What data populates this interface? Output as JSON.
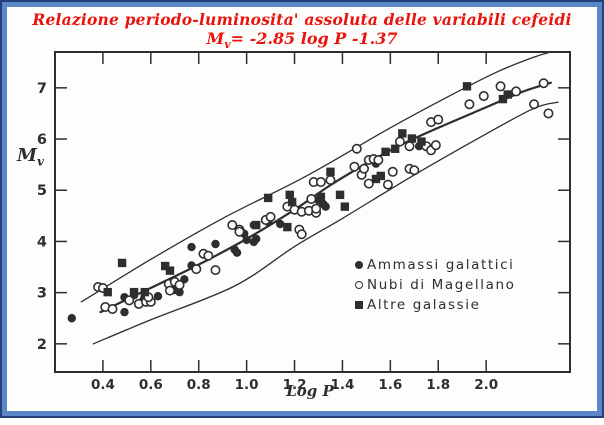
{
  "window": {
    "background": "#fdfdfc",
    "border_outer_color": "#24407a",
    "border_inner_color": "#5b87c9",
    "ink_color": "#2e2e2e",
    "title_color": "#e8150e"
  },
  "title": {
    "line1": "Relazione periodo-luminosita' assoluta delle variabili cefeidi",
    "formula_m": "M",
    "formula_sub": "v",
    "formula_rest": "= -2.85 log P  -1.37"
  },
  "chart_data": {
    "type": "scatter",
    "title": "Relazione periodo-luminosita' assoluta delle variabili cefeidi",
    "subtitle": "Mv = -2.85 log P - 1.37",
    "xlabel": "Log P",
    "ylabel": "M",
    "ylabel_sub": "v",
    "xlim": [
      0.2,
      2.35
    ],
    "ylim": [
      1.45,
      7.7
    ],
    "x_ticks": [
      0.4,
      0.6,
      0.8,
      1.0,
      1.2,
      1.4,
      1.6,
      1.8,
      2.0
    ],
    "x_tick_labels": [
      "0.4",
      "0.6",
      "0.8",
      "1.0",
      "1.2",
      "1.4",
      "1.6",
      "1.8",
      "2.0"
    ],
    "y_ticks": [
      2,
      3,
      4,
      5,
      6,
      7
    ],
    "y_tick_labels": [
      "2",
      "3",
      "4",
      "5",
      "6",
      "7"
    ],
    "grid": false,
    "legend_position": "inside-lower-right",
    "series": [
      {
        "name": "Ammassi galattici",
        "marker": "filled-circle",
        "points": [
          [
            0.27,
            2.5
          ],
          [
            0.49,
            2.62
          ],
          [
            0.49,
            2.91
          ],
          [
            0.53,
            2.95
          ],
          [
            0.57,
            2.87
          ],
          [
            0.63,
            2.93
          ],
          [
            0.7,
            3.05
          ],
          [
            0.72,
            3.01
          ],
          [
            0.74,
            3.26
          ],
          [
            0.77,
            3.53
          ],
          [
            0.77,
            3.89
          ],
          [
            0.87,
            3.95
          ],
          [
            0.95,
            3.84
          ],
          [
            0.96,
            3.78
          ],
          [
            0.99,
            4.15
          ],
          [
            1.0,
            4.03
          ],
          [
            1.03,
            3.99
          ],
          [
            1.04,
            4.05
          ],
          [
            1.03,
            4.32
          ],
          [
            1.09,
            4.38
          ],
          [
            1.14,
            4.34
          ],
          [
            1.3,
            4.81
          ],
          [
            1.32,
            4.73
          ],
          [
            1.33,
            4.68
          ],
          [
            1.54,
            5.52
          ],
          [
            1.72,
            5.86
          ]
        ]
      },
      {
        "name": "Nubi di Magellano",
        "marker": "open-circle",
        "points": [
          [
            0.38,
            3.11
          ],
          [
            0.4,
            3.09
          ],
          [
            0.41,
            2.72
          ],
          [
            0.44,
            2.68
          ],
          [
            0.51,
            2.85
          ],
          [
            0.55,
            2.78
          ],
          [
            0.58,
            2.82
          ],
          [
            0.6,
            2.82
          ],
          [
            0.59,
            2.91
          ],
          [
            0.675,
            3.17
          ],
          [
            0.7,
            3.21
          ],
          [
            0.72,
            3.15
          ],
          [
            0.68,
            3.04
          ],
          [
            0.79,
            3.46
          ],
          [
            0.82,
            3.76
          ],
          [
            0.84,
            3.72
          ],
          [
            0.87,
            3.44
          ],
          [
            0.94,
            4.32
          ],
          [
            0.97,
            4.23
          ],
          [
            0.97,
            4.19
          ],
          [
            1.08,
            4.42
          ],
          [
            1.1,
            4.48
          ],
          [
            1.17,
            4.68
          ],
          [
            1.2,
            4.62
          ],
          [
            1.22,
            4.23
          ],
          [
            1.23,
            4.58
          ],
          [
            1.23,
            4.14
          ],
          [
            1.26,
            4.6
          ],
          [
            1.29,
            4.56
          ],
          [
            1.28,
            5.16
          ],
          [
            1.31,
            5.16
          ],
          [
            1.35,
            5.2
          ],
          [
            1.27,
            4.83
          ],
          [
            1.29,
            4.64
          ],
          [
            1.45,
            5.46
          ],
          [
            1.46,
            5.81
          ],
          [
            1.48,
            5.3
          ],
          [
            1.49,
            5.42
          ],
          [
            1.51,
            5.59
          ],
          [
            1.53,
            5.61
          ],
          [
            1.51,
            5.13
          ],
          [
            1.55,
            5.59
          ],
          [
            1.59,
            5.11
          ],
          [
            1.61,
            5.36
          ],
          [
            1.64,
            5.95
          ],
          [
            1.68,
            5.86
          ],
          [
            1.68,
            5.42
          ],
          [
            1.7,
            5.39
          ],
          [
            1.75,
            5.86
          ],
          [
            1.77,
            5.78
          ],
          [
            1.79,
            5.88
          ],
          [
            1.77,
            6.33
          ],
          [
            1.8,
            6.38
          ],
          [
            1.93,
            6.68
          ],
          [
            1.99,
            6.84
          ],
          [
            2.06,
            7.03
          ],
          [
            2.125,
            6.93
          ],
          [
            2.2,
            6.68
          ],
          [
            2.24,
            7.09
          ],
          [
            2.26,
            6.5
          ]
        ]
      },
      {
        "name": "Altre galassie",
        "marker": "filled-square",
        "points": [
          [
            0.42,
            3.01
          ],
          [
            0.48,
            3.58
          ],
          [
            0.53,
            3.01
          ],
          [
            0.575,
            3.01
          ],
          [
            0.66,
            3.52
          ],
          [
            0.68,
            3.43
          ],
          [
            1.04,
            4.32
          ],
          [
            1.09,
            4.85
          ],
          [
            1.17,
            4.28
          ],
          [
            1.18,
            4.91
          ],
          [
            1.19,
            4.77
          ],
          [
            1.31,
            4.87
          ],
          [
            1.35,
            5.36
          ],
          [
            1.39,
            4.91
          ],
          [
            1.41,
            4.68
          ],
          [
            1.54,
            5.22
          ],
          [
            1.56,
            5.28
          ],
          [
            1.58,
            5.75
          ],
          [
            1.62,
            5.81
          ],
          [
            1.65,
            6.11
          ],
          [
            1.69,
            6.01
          ],
          [
            1.73,
            5.95
          ],
          [
            1.92,
            7.03
          ],
          [
            2.07,
            6.78
          ],
          [
            2.09,
            6.87
          ]
        ]
      }
    ],
    "lines": [
      {
        "name": "upper-envelope",
        "width": 1.3,
        "points": [
          [
            0.31,
            2.82
          ],
          [
            0.6,
            3.65
          ],
          [
            0.9,
            4.45
          ],
          [
            1.25,
            5.28
          ],
          [
            1.6,
            6.22
          ],
          [
            1.85,
            6.85
          ],
          [
            2.05,
            7.32
          ],
          [
            2.2,
            7.6
          ],
          [
            2.27,
            7.7
          ]
        ]
      },
      {
        "name": "mean-relation",
        "width": 2.2,
        "points": [
          [
            0.39,
            2.62
          ],
          [
            0.55,
            2.98
          ],
          [
            0.78,
            3.5
          ],
          [
            1.0,
            4.05
          ],
          [
            1.2,
            4.62
          ],
          [
            1.35,
            5.1
          ],
          [
            1.5,
            5.52
          ],
          [
            1.65,
            5.9
          ],
          [
            1.8,
            6.22
          ],
          [
            2.0,
            6.62
          ],
          [
            2.15,
            6.92
          ],
          [
            2.27,
            7.1
          ]
        ]
      },
      {
        "name": "lower-envelope",
        "width": 1.3,
        "points": [
          [
            0.36,
            2.0
          ],
          [
            0.6,
            2.47
          ],
          [
            0.95,
            3.13
          ],
          [
            1.2,
            3.9
          ],
          [
            1.4,
            4.45
          ],
          [
            1.7,
            5.3
          ],
          [
            2.0,
            6.1
          ],
          [
            2.2,
            6.6
          ],
          [
            2.3,
            6.72
          ]
        ]
      }
    ]
  }
}
